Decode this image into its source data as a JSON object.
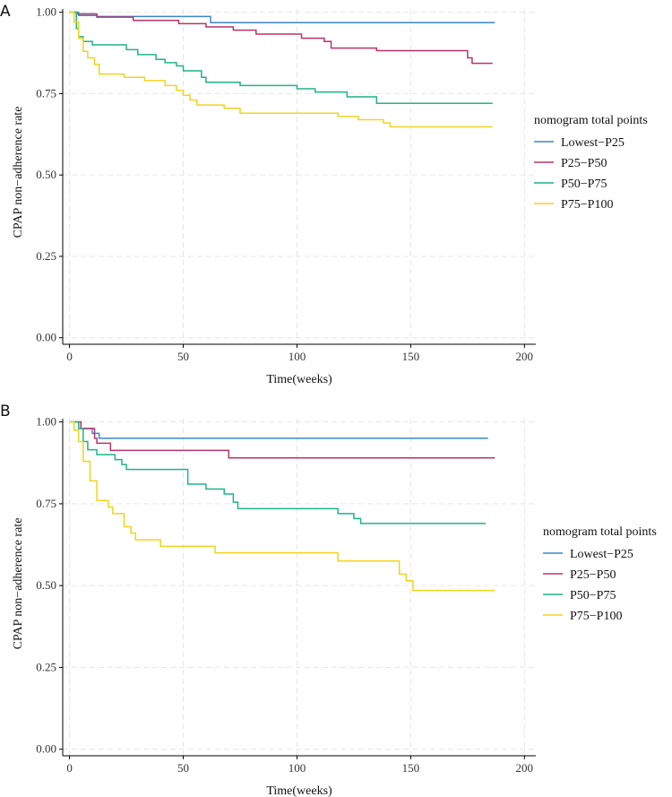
{
  "chart_data": [
    {
      "type": "line",
      "step": true,
      "panel_label": "A",
      "xlabel": "Time(weeks)",
      "ylabel": "CPAP non−adherence rate",
      "xlim": [
        -3,
        205
      ],
      "ylim": [
        -0.02,
        1.01
      ],
      "x_ticks": [
        0,
        50,
        100,
        150,
        200
      ],
      "x_tick_labels": [
        "0",
        "50",
        "100",
        "150",
        "200"
      ],
      "y_ticks": [
        0,
        0.25,
        0.5,
        0.75,
        1
      ],
      "y_tick_labels": [
        "0.00",
        "0.25",
        "0.50",
        "0.75",
        "1.00"
      ],
      "grid": true,
      "legend": {
        "title": "nomogram total points",
        "position": "right",
        "entries": [
          "Lowest−P25",
          "P25−P50",
          "P50−P75",
          "P75−P100"
        ]
      },
      "series": [
        {
          "name": "Lowest−P25",
          "color": "#3b87c9",
          "points": [
            [
              0,
              1
            ],
            [
              4,
              1
            ],
            [
              4,
              0.99
            ],
            [
              12,
              0.99
            ],
            [
              12,
              0.987
            ],
            [
              62,
              0.987
            ],
            [
              62,
              0.968
            ],
            [
              187,
              0.968
            ]
          ]
        },
        {
          "name": "P25−P50",
          "color": "#b8336a",
          "points": [
            [
              0,
              1
            ],
            [
              3,
              1
            ],
            [
              3,
              0.995
            ],
            [
              12,
              0.995
            ],
            [
              12,
              0.985
            ],
            [
              28,
              0.985
            ],
            [
              28,
              0.975
            ],
            [
              48,
              0.975
            ],
            [
              48,
              0.965
            ],
            [
              60,
              0.965
            ],
            [
              60,
              0.955
            ],
            [
              72,
              0.955
            ],
            [
              72,
              0.945
            ],
            [
              82,
              0.945
            ],
            [
              82,
              0.933
            ],
            [
              102,
              0.933
            ],
            [
              102,
              0.92
            ],
            [
              112,
              0.92
            ],
            [
              112,
              0.91
            ],
            [
              115,
              0.91
            ],
            [
              115,
              0.89
            ],
            [
              135,
              0.89
            ],
            [
              135,
              0.882
            ],
            [
              175,
              0.882
            ],
            [
              175,
              0.86
            ],
            [
              177,
              0.86
            ],
            [
              177,
              0.843
            ],
            [
              186,
              0.843
            ]
          ]
        },
        {
          "name": "P50−P75",
          "color": "#1fb486",
          "points": [
            [
              0,
              1
            ],
            [
              3,
              1
            ],
            [
              3,
              0.95
            ],
            [
              4,
              0.95
            ],
            [
              4,
              0.925
            ],
            [
              6,
              0.925
            ],
            [
              6,
              0.91
            ],
            [
              10,
              0.91
            ],
            [
              10,
              0.9
            ],
            [
              25,
              0.9
            ],
            [
              25,
              0.885
            ],
            [
              30,
              0.885
            ],
            [
              30,
              0.87
            ],
            [
              38,
              0.87
            ],
            [
              38,
              0.855
            ],
            [
              42,
              0.855
            ],
            [
              42,
              0.845
            ],
            [
              47,
              0.845
            ],
            [
              47,
              0.835
            ],
            [
              50,
              0.835
            ],
            [
              50,
              0.82
            ],
            [
              58,
              0.82
            ],
            [
              58,
              0.8
            ],
            [
              60,
              0.8
            ],
            [
              60,
              0.785
            ],
            [
              75,
              0.785
            ],
            [
              75,
              0.775
            ],
            [
              100,
              0.775
            ],
            [
              100,
              0.765
            ],
            [
              108,
              0.765
            ],
            [
              108,
              0.755
            ],
            [
              122,
              0.755
            ],
            [
              122,
              0.74
            ],
            [
              135,
              0.74
            ],
            [
              135,
              0.72
            ],
            [
              186,
              0.72
            ]
          ]
        },
        {
          "name": "P75−P100",
          "color": "#f1d320",
          "points": [
            [
              0,
              1
            ],
            [
              2,
              1
            ],
            [
              2,
              0.97
            ],
            [
              4,
              0.97
            ],
            [
              4,
              0.92
            ],
            [
              6,
              0.92
            ],
            [
              6,
              0.88
            ],
            [
              8,
              0.88
            ],
            [
              8,
              0.86
            ],
            [
              11,
              0.86
            ],
            [
              11,
              0.84
            ],
            [
              13,
              0.84
            ],
            [
              13,
              0.81
            ],
            [
              24,
              0.81
            ],
            [
              24,
              0.8
            ],
            [
              33,
              0.8
            ],
            [
              33,
              0.79
            ],
            [
              42,
              0.79
            ],
            [
              42,
              0.775
            ],
            [
              47,
              0.775
            ],
            [
              47,
              0.76
            ],
            [
              50,
              0.76
            ],
            [
              50,
              0.745
            ],
            [
              53,
              0.745
            ],
            [
              53,
              0.73
            ],
            [
              56,
              0.73
            ],
            [
              56,
              0.715
            ],
            [
              68,
              0.715
            ],
            [
              68,
              0.705
            ],
            [
              75,
              0.705
            ],
            [
              75,
              0.69
            ],
            [
              118,
              0.69
            ],
            [
              118,
              0.68
            ],
            [
              127,
              0.68
            ],
            [
              127,
              0.67
            ],
            [
              138,
              0.67
            ],
            [
              138,
              0.66
            ],
            [
              141,
              0.66
            ],
            [
              141,
              0.648
            ],
            [
              186,
              0.648
            ]
          ]
        }
      ]
    },
    {
      "type": "line",
      "step": true,
      "panel_label": "B",
      "xlabel": "Time(weeks)",
      "ylabel": "CPAP non−adherence rate",
      "xlim": [
        -3,
        205
      ],
      "ylim": [
        -0.02,
        1.01
      ],
      "x_ticks": [
        0,
        50,
        100,
        150,
        200
      ],
      "x_tick_labels": [
        "0",
        "50",
        "100",
        "150",
        "200"
      ],
      "y_ticks": [
        0,
        0.25,
        0.5,
        0.75,
        1
      ],
      "y_tick_labels": [
        "0.00",
        "0.25",
        "0.50",
        "0.75",
        "1.00"
      ],
      "grid": true,
      "legend": {
        "title": "nomogram total points",
        "position": "right",
        "entries": [
          "Lowest−P25",
          "P25−P50",
          "P50−P75",
          "P75−P100"
        ]
      },
      "series": [
        {
          "name": "Lowest−P25",
          "color": "#3b87c9",
          "points": [
            [
              0,
              1
            ],
            [
              5,
              1
            ],
            [
              5,
              0.98
            ],
            [
              10,
              0.98
            ],
            [
              10,
              0.965
            ],
            [
              13,
              0.965
            ],
            [
              13,
              0.95
            ],
            [
              184,
              0.95
            ]
          ]
        },
        {
          "name": "P25−P50",
          "color": "#b8336a",
          "points": [
            [
              0,
              1
            ],
            [
              5,
              1
            ],
            [
              5,
              0.98
            ],
            [
              11,
              0.98
            ],
            [
              11,
              0.95
            ],
            [
              12,
              0.95
            ],
            [
              12,
              0.935
            ],
            [
              18,
              0.935
            ],
            [
              18,
              0.913
            ],
            [
              70,
              0.913
            ],
            [
              70,
              0.89
            ],
            [
              187,
              0.89
            ]
          ]
        },
        {
          "name": "P50−P75",
          "color": "#1fb486",
          "points": [
            [
              0,
              1
            ],
            [
              4,
              1
            ],
            [
              4,
              0.98
            ],
            [
              6,
              0.98
            ],
            [
              6,
              0.94
            ],
            [
              8,
              0.94
            ],
            [
              8,
              0.915
            ],
            [
              12,
              0.915
            ],
            [
              12,
              0.9
            ],
            [
              20,
              0.9
            ],
            [
              20,
              0.885
            ],
            [
              23,
              0.885
            ],
            [
              23,
              0.87
            ],
            [
              25,
              0.87
            ],
            [
              25,
              0.855
            ],
            [
              52,
              0.855
            ],
            [
              52,
              0.81
            ],
            [
              60,
              0.81
            ],
            [
              60,
              0.795
            ],
            [
              68,
              0.795
            ],
            [
              68,
              0.78
            ],
            [
              72,
              0.78
            ],
            [
              72,
              0.755
            ],
            [
              74,
              0.755
            ],
            [
              74,
              0.735
            ],
            [
              118,
              0.735
            ],
            [
              118,
              0.72
            ],
            [
              125,
              0.72
            ],
            [
              125,
              0.705
            ],
            [
              128,
              0.705
            ],
            [
              128,
              0.69
            ],
            [
              183,
              0.69
            ]
          ]
        },
        {
          "name": "P75−P100",
          "color": "#f1d320",
          "points": [
            [
              0,
              1
            ],
            [
              2,
              1
            ],
            [
              2,
              0.975
            ],
            [
              4,
              0.975
            ],
            [
              4,
              0.94
            ],
            [
              6,
              0.94
            ],
            [
              6,
              0.88
            ],
            [
              9,
              0.88
            ],
            [
              9,
              0.82
            ],
            [
              12,
              0.82
            ],
            [
              12,
              0.76
            ],
            [
              17,
              0.76
            ],
            [
              17,
              0.74
            ],
            [
              19,
              0.74
            ],
            [
              19,
              0.72
            ],
            [
              24,
              0.72
            ],
            [
              24,
              0.68
            ],
            [
              27,
              0.68
            ],
            [
              27,
              0.66
            ],
            [
              29,
              0.66
            ],
            [
              29,
              0.64
            ],
            [
              40,
              0.64
            ],
            [
              40,
              0.62
            ],
            [
              64,
              0.62
            ],
            [
              64,
              0.6
            ],
            [
              118,
              0.6
            ],
            [
              118,
              0.575
            ],
            [
              145,
              0.575
            ],
            [
              145,
              0.535
            ],
            [
              148,
              0.535
            ],
            [
              148,
              0.515
            ],
            [
              151,
              0.515
            ],
            [
              151,
              0.485
            ],
            [
              187,
              0.485
            ]
          ]
        }
      ]
    }
  ]
}
